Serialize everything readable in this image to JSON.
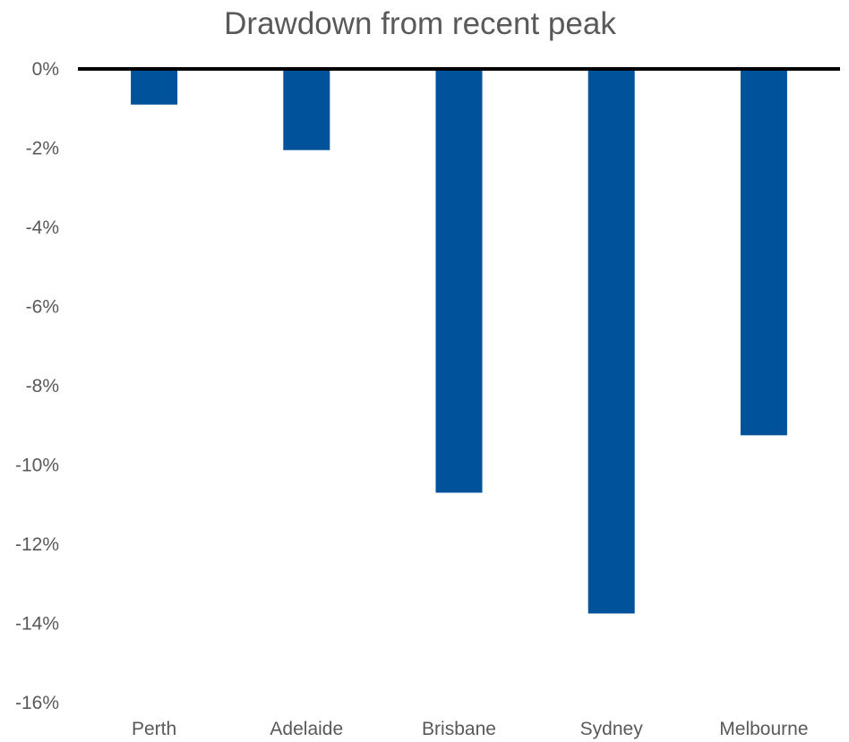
{
  "chart_data": {
    "type": "bar",
    "title": "Drawdown from recent peak",
    "xlabel": "",
    "ylabel": "",
    "categories": [
      "Perth",
      "Adelaide",
      "Brisbane",
      "Sydney",
      "Melbourne"
    ],
    "values": [
      -0.9,
      -2.05,
      -10.7,
      -13.75,
      -9.25
    ],
    "ylim": [
      -16,
      0
    ],
    "yticks": [
      0,
      -2,
      -4,
      -6,
      -8,
      -10,
      -12,
      -14,
      -16
    ],
    "ytick_labels": [
      "0%",
      "-2%",
      "-4%",
      "-6%",
      "-8%",
      "-10%",
      "-12%",
      "-14%",
      "-16%"
    ],
    "grid": false,
    "legend": "none",
    "bar_color": "#00529B",
    "axis_line_color": "#000000",
    "text_color": "#595959"
  }
}
